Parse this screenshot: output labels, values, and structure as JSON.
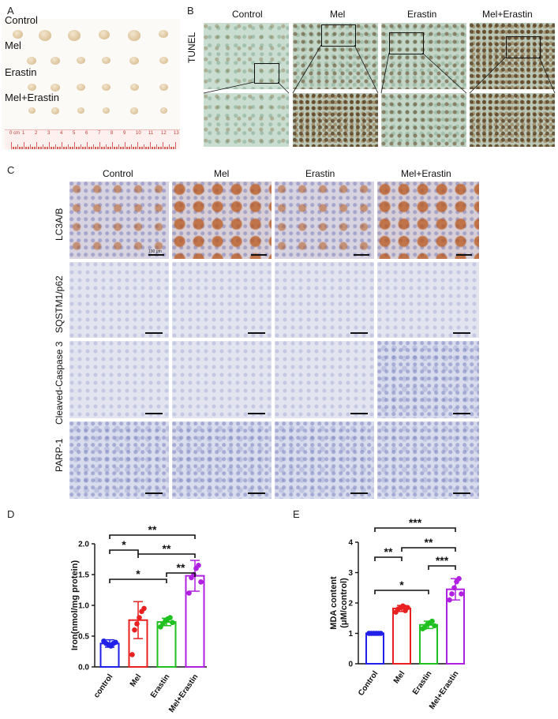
{
  "panel_letters": {
    "a": "A",
    "b": "B",
    "c": "C",
    "d": "D",
    "e": "E"
  },
  "panel_a": {
    "group_labels": [
      "Control",
      "Mel",
      "Erastin",
      "Mel+Erastin"
    ],
    "ruler_label": "0 cm",
    "ruler_numbers": [
      "1",
      "2",
      "3",
      "4",
      "5",
      "6",
      "7",
      "8",
      "9",
      "10",
      "11",
      "12",
      "13"
    ]
  },
  "panel_b": {
    "row_label": "TUNEL",
    "column_labels": [
      "Control",
      "Mel",
      "Erastin",
      "Mel+Erastin"
    ]
  },
  "panel_c": {
    "column_labels": [
      "Control",
      "Mel",
      "Erastin",
      "Mel+Erastin"
    ],
    "row_labels": [
      "LC3A/B",
      "SQSTM1/p62",
      "Cleaved-Caspase 3",
      "PARP-1"
    ],
    "scale_text": "100 μm"
  },
  "chart_data": [
    {
      "type": "bar",
      "panel": "D",
      "categories": [
        "control",
        "Mel",
        "Erastin",
        "Mel+Erastin"
      ],
      "values": [
        0.38,
        0.76,
        0.73,
        1.48
      ],
      "errors": [
        0.06,
        0.3,
        0.06,
        0.25
      ],
      "points": [
        [
          0.42,
          0.38,
          0.36,
          0.34,
          0.38,
          0.4
        ],
        [
          0.2,
          0.6,
          0.7,
          0.8,
          0.9,
          0.95
        ],
        [
          0.65,
          0.7,
          0.75,
          0.78,
          0.8,
          0.72
        ],
        [
          1.2,
          1.45,
          1.5,
          1.6,
          1.65,
          1.38
        ]
      ],
      "colors": [
        "#2020e8",
        "#e82020",
        "#20c020",
        "#b020e0"
      ],
      "ylabel": "Iron(nmol/mg protein)",
      "xlabel": "",
      "ylim": [
        0.0,
        2.0
      ],
      "yticks": [
        "0.0",
        "0.5",
        "1.0",
        "1.5",
        "2.0"
      ],
      "significance": [
        {
          "from": 0,
          "to": 1,
          "label": "*"
        },
        {
          "from": 0,
          "to": 2,
          "label": "*"
        },
        {
          "from": 2,
          "to": 3,
          "label": "**"
        },
        {
          "from": 1,
          "to": 3,
          "label": "**"
        },
        {
          "from": 0,
          "to": 3,
          "label": "**"
        }
      ]
    },
    {
      "type": "bar",
      "panel": "E",
      "categories": [
        "Control",
        "Mel",
        "Erastin",
        "Mel+Erastin"
      ],
      "values": [
        1.0,
        1.82,
        1.28,
        2.45
      ],
      "errors": [
        0.02,
        0.1,
        0.12,
        0.35
      ],
      "points": [
        [
          1.0,
          1.0,
          1.0,
          1.0,
          1.0,
          1.0
        ],
        [
          1.7,
          1.8,
          1.85,
          1.9,
          1.75,
          1.85
        ],
        [
          1.15,
          1.2,
          1.3,
          1.35,
          1.4,
          1.25
        ],
        [
          2.1,
          2.3,
          2.5,
          2.7,
          2.8,
          2.3
        ]
      ],
      "colors": [
        "#2020e8",
        "#e82020",
        "#20c020",
        "#b020e0"
      ],
      "ylabel": "MDA content\n(μM/control)",
      "xlabel": "",
      "ylim": [
        0,
        4
      ],
      "yticks": [
        "0",
        "1",
        "2",
        "3",
        "4"
      ],
      "significance": [
        {
          "from": 0,
          "to": 1,
          "label": "**"
        },
        {
          "from": 0,
          "to": 2,
          "label": "*"
        },
        {
          "from": 2,
          "to": 3,
          "label": "***"
        },
        {
          "from": 1,
          "to": 3,
          "label": "**"
        },
        {
          "from": 0,
          "to": 3,
          "label": "***"
        }
      ]
    }
  ]
}
